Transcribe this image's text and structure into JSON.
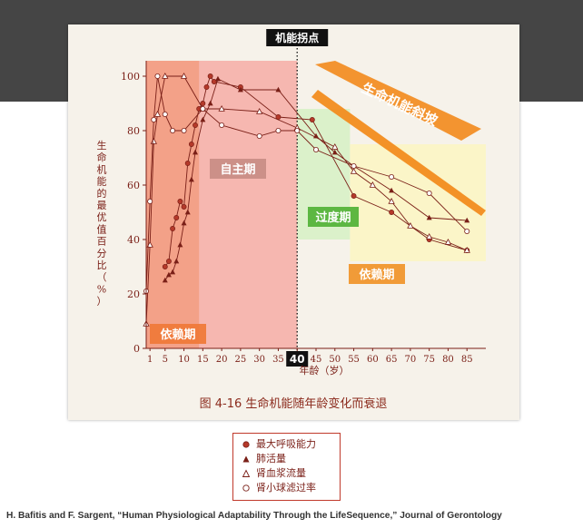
{
  "chart_data": {
    "type": "line",
    "title": "图 4-16   生命机能随年龄变化而衰退",
    "xlabel": "年龄（岁）",
    "ylabel": "生命机能的最优值百分比（%）",
    "xlim": [
      0,
      90
    ],
    "ylim": [
      0,
      105
    ],
    "x_ticks": [
      1,
      5,
      10,
      15,
      20,
      25,
      30,
      35,
      40,
      45,
      50,
      55,
      60,
      65,
      70,
      75,
      80,
      85
    ],
    "x_tick_labels": [
      "1",
      "5",
      "10",
      "15",
      "20",
      "25",
      "30",
      "35",
      "",
      "45",
      "50",
      "55",
      "60",
      "65",
      "70",
      "75",
      "80",
      "85"
    ],
    "y_ticks": [
      0,
      20,
      40,
      60,
      80,
      100
    ],
    "inflection": {
      "x": 40,
      "label": "机能拐点",
      "tick_label": "40"
    },
    "stages": [
      {
        "name": "依赖期",
        "x_from": 0,
        "x_to": 40,
        "color": "#f28a6b"
      },
      {
        "name": "自主期",
        "x_from": 14,
        "x_to": 40,
        "color": "#f6b8b3"
      },
      {
        "name": "过度期",
        "x_from": 40,
        "x_to": 54,
        "color": "#d9f0c8"
      },
      {
        "name": "依赖期",
        "x_from": 54,
        "x_to": 90,
        "color": "#fbf4c6"
      }
    ],
    "decline_label": "生命机能斜坡",
    "series": [
      {
        "name": "最大呼吸能力",
        "marker": "filled-circle",
        "x": [
          5,
          6,
          7,
          8,
          9,
          10,
          11,
          12,
          13,
          14,
          15,
          16,
          17,
          18,
          25,
          35,
          44,
          55,
          65,
          75,
          85
        ],
        "y": [
          30,
          32,
          44,
          48,
          54,
          52,
          68,
          75,
          82,
          88,
          90,
          96,
          100,
          98,
          96,
          85,
          84,
          56,
          50,
          40,
          36
        ]
      },
      {
        "name": "肺活量",
        "marker": "filled-triangle",
        "x": [
          5,
          6,
          7,
          8,
          9,
          10,
          11,
          12,
          13,
          15,
          17,
          19,
          25,
          35,
          45,
          50,
          55,
          65,
          75,
          85
        ],
        "y": [
          25,
          27,
          28,
          32,
          38,
          46,
          50,
          62,
          72,
          84,
          90,
          99,
          95,
          95,
          78,
          72,
          67,
          58,
          48,
          47
        ]
      },
      {
        "name": "肾血浆流量",
        "marker": "open-triangle",
        "x": [
          0,
          1,
          2,
          3,
          5,
          10,
          15,
          20,
          30,
          40,
          50,
          55,
          60,
          65,
          70,
          75,
          80,
          85
        ],
        "y": [
          9,
          38,
          76,
          86,
          100,
          100,
          88,
          88,
          87,
          81,
          74,
          65,
          60,
          54,
          45,
          41,
          39,
          36
        ]
      },
      {
        "name": "肾小球滤过率",
        "marker": "open-circle",
        "x": [
          0,
          1,
          2,
          3,
          5,
          7,
          10,
          15,
          20,
          30,
          35,
          40,
          45,
          55,
          65,
          75,
          85
        ],
        "y": [
          21,
          54,
          84,
          100,
          86,
          80,
          80,
          88,
          82,
          78,
          80,
          80,
          73,
          67,
          63,
          57,
          43
        ]
      }
    ]
  },
  "credit": "H. Bafitis and F. Sargent, “Human Physiological Adaptability Through the LifeSequence,” Journal of Gerontology"
}
